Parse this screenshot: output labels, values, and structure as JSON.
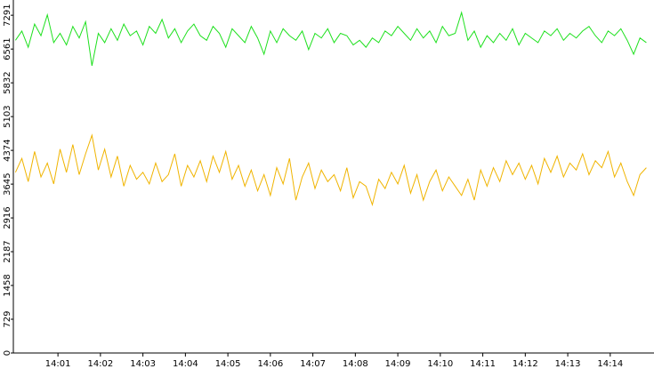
{
  "chart_data": {
    "type": "line",
    "x": [
      0,
      0.15,
      0.3,
      0.45,
      0.6,
      0.75,
      0.9,
      1.05,
      1.2,
      1.35,
      1.5,
      1.65,
      1.8,
      1.95,
      2.1,
      2.25,
      2.4,
      2.55,
      2.7,
      2.85,
      3,
      3.15,
      3.3,
      3.45,
      3.6,
      3.75,
      3.9,
      4.05,
      4.2,
      4.35,
      4.5,
      4.65,
      4.8,
      4.95,
      5.1,
      5.25,
      5.4,
      5.55,
      5.7,
      5.85,
      6,
      6.15,
      6.3,
      6.45,
      6.6,
      6.75,
      6.9,
      7.05,
      7.2,
      7.35,
      7.5,
      7.65,
      7.8,
      7.95,
      8.1,
      8.25,
      8.4,
      8.55,
      8.7,
      8.85,
      9,
      9.15,
      9.3,
      9.45,
      9.6,
      9.75,
      9.9,
      10.05,
      10.2,
      10.35,
      10.5,
      10.65,
      10.8,
      10.95,
      11.1,
      11.25,
      11.4,
      11.55,
      11.7,
      11.85,
      12,
      12.15,
      12.3,
      12.45,
      12.6,
      12.75,
      12.9,
      13.05,
      13.2,
      13.35,
      13.5,
      13.65,
      13.8,
      13.95,
      14.1,
      14.25,
      14.4,
      14.55,
      14.7,
      14.85
    ],
    "series": [
      {
        "color": "#1ee01e",
        "values": [
          6750,
          6950,
          6600,
          7100,
          6850,
          7300,
          6700,
          6900,
          6650,
          7050,
          6800,
          7150,
          6200,
          6900,
          6700,
          7000,
          6750,
          7100,
          6850,
          6950,
          6650,
          7050,
          6900,
          7200,
          6800,
          7000,
          6700,
          6950,
          7100,
          6850,
          6750,
          7050,
          6900,
          6600,
          7000,
          6850,
          6700,
          7050,
          6800,
          6450,
          6950,
          6700,
          7000,
          6850,
          6750,
          6950,
          6550,
          6900,
          6800,
          7000,
          6700,
          6900,
          6850,
          6650,
          6750,
          6600,
          6800,
          6700,
          6950,
          6850,
          7050,
          6900,
          6750,
          7000,
          6800,
          6950,
          6700,
          7050,
          6850,
          6900,
          7350,
          6750,
          6950,
          6600,
          6850,
          6700,
          6900,
          6750,
          7000,
          6650,
          6900,
          6800,
          6700,
          6950,
          6850,
          7000,
          6750,
          6900,
          6800,
          6950,
          7050,
          6850,
          6700,
          6950,
          6850,
          7000,
          6750,
          6450,
          6800,
          6700
        ]
      },
      {
        "color": "#f0b400",
        "values": [
          3900,
          4200,
          3700,
          4350,
          3800,
          4100,
          3650,
          4400,
          3900,
          4500,
          3850,
          4300,
          4700,
          3950,
          4400,
          3800,
          4250,
          3600,
          4050,
          3750,
          3900,
          3650,
          4100,
          3700,
          3850,
          4300,
          3600,
          4050,
          3800,
          4150,
          3700,
          4250,
          3900,
          4350,
          3750,
          4050,
          3600,
          3950,
          3500,
          3850,
          3400,
          4000,
          3650,
          4200,
          3300,
          3800,
          4100,
          3550,
          3950,
          3700,
          3850,
          3500,
          4000,
          3350,
          3700,
          3600,
          3200,
          3750,
          3550,
          3900,
          3650,
          4050,
          3450,
          3850,
          3300,
          3700,
          3950,
          3500,
          3800,
          3600,
          3400,
          3750,
          3300,
          3950,
          3600,
          4000,
          3700,
          4150,
          3850,
          4100,
          3750,
          4050,
          3650,
          4200,
          3900,
          4250,
          3800,
          4100,
          3950,
          4300,
          3850,
          4150,
          4000,
          4350,
          3800,
          4100,
          3700,
          3400,
          3850,
          4000
        ]
      }
    ],
    "xlim": [
      -0.05,
      15.03
    ],
    "ylim": [
      0,
      7620
    ],
    "xticks": [
      {
        "value": 1,
        "label": "14:01"
      },
      {
        "value": 2,
        "label": "14:02"
      },
      {
        "value": 3,
        "label": "14:03"
      },
      {
        "value": 4,
        "label": "14:04"
      },
      {
        "value": 5,
        "label": "14:05"
      },
      {
        "value": 6,
        "label": "14:06"
      },
      {
        "value": 7,
        "label": "14:07"
      },
      {
        "value": 8,
        "label": "14:08"
      },
      {
        "value": 9,
        "label": "14:09"
      },
      {
        "value": 10,
        "label": "14:10"
      },
      {
        "value": 11,
        "label": "14:11"
      },
      {
        "value": 12,
        "label": "14:12"
      },
      {
        "value": 13,
        "label": "14:13"
      },
      {
        "value": 14,
        "label": "14:14"
      }
    ],
    "yticks": [
      0,
      729,
      1458,
      2187,
      2916,
      3645,
      4374,
      5103,
      5832,
      6561,
      7291
    ]
  }
}
